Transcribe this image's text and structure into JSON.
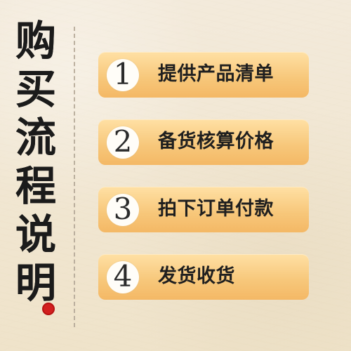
{
  "title": {
    "chars": [
      "购",
      "买",
      "流",
      "程",
      "说",
      "明"
    ]
  },
  "steps": [
    {
      "number": "1",
      "label": "提供产品清单"
    },
    {
      "number": "2",
      "label": "备货核算价格"
    },
    {
      "number": "3",
      "label": "拍下订单付款"
    },
    {
      "number": "4",
      "label": "发货收货"
    }
  ],
  "colors": {
    "background": "#f1e7d3",
    "step_fill": "#f7c77a",
    "badge_fill": "#fffdf8",
    "seal_red": "#d21f1f",
    "text_dark": "#1b1b1b"
  }
}
